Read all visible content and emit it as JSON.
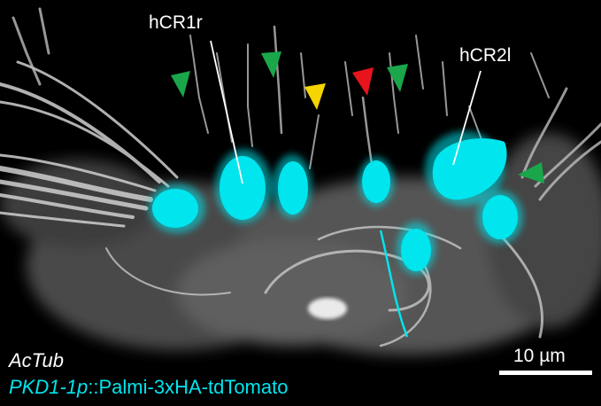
{
  "labels": {
    "cell_1": "hCR1r",
    "cell_2": "hCR2l",
    "stain_1": "AcTub",
    "stain_2_gene": "PKD1-1p",
    "stain_2_rest": "::Palmi-3xHA-tdTomato",
    "scale_bar": "10 µm"
  },
  "colors": {
    "background": "#000000",
    "actub_signal": "#d9d9d9",
    "pkd_signal": "#00e5ee",
    "arrowhead_green": "#1aa64a",
    "arrowhead_yellow": "#f5d400",
    "arrowhead_red": "#e8141c",
    "text": "#ffffff"
  },
  "arrowheads": [
    {
      "color": "green"
    },
    {
      "color": "green"
    },
    {
      "color": "yellow"
    },
    {
      "color": "red"
    },
    {
      "color": "green"
    },
    {
      "color": "green"
    }
  ]
}
